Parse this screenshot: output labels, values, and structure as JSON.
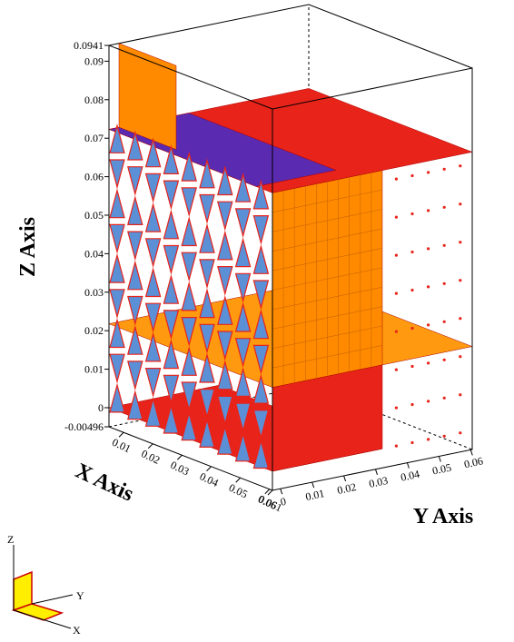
{
  "chart_data": {
    "type": "lego3d",
    "xlabel": "X Axis",
    "ylabel": "Y Axis",
    "zlabel": "Z Axis",
    "xlim": [
      0.005,
      0.061
    ],
    "ylim": [
      -0.0025,
      0.0605
    ],
    "zlim": [
      -0.00496,
      0.0941
    ],
    "xticks": [
      0.01,
      0.02,
      0.03,
      0.04,
      0.05,
      0.06,
      0.061
    ],
    "yticks": [
      0,
      0.01,
      0.02,
      0.03,
      0.04,
      0.05,
      0.06
    ],
    "zticks": [
      {
        "value": -0.00496,
        "label": "-0.00496"
      },
      0,
      0.01,
      0.02,
      0.03,
      0.04,
      0.05,
      0.06,
      0.07,
      0.08,
      0.09,
      0.0941
    ],
    "triad": {
      "z": "Z",
      "y": "Y",
      "x": "X"
    }
  }
}
